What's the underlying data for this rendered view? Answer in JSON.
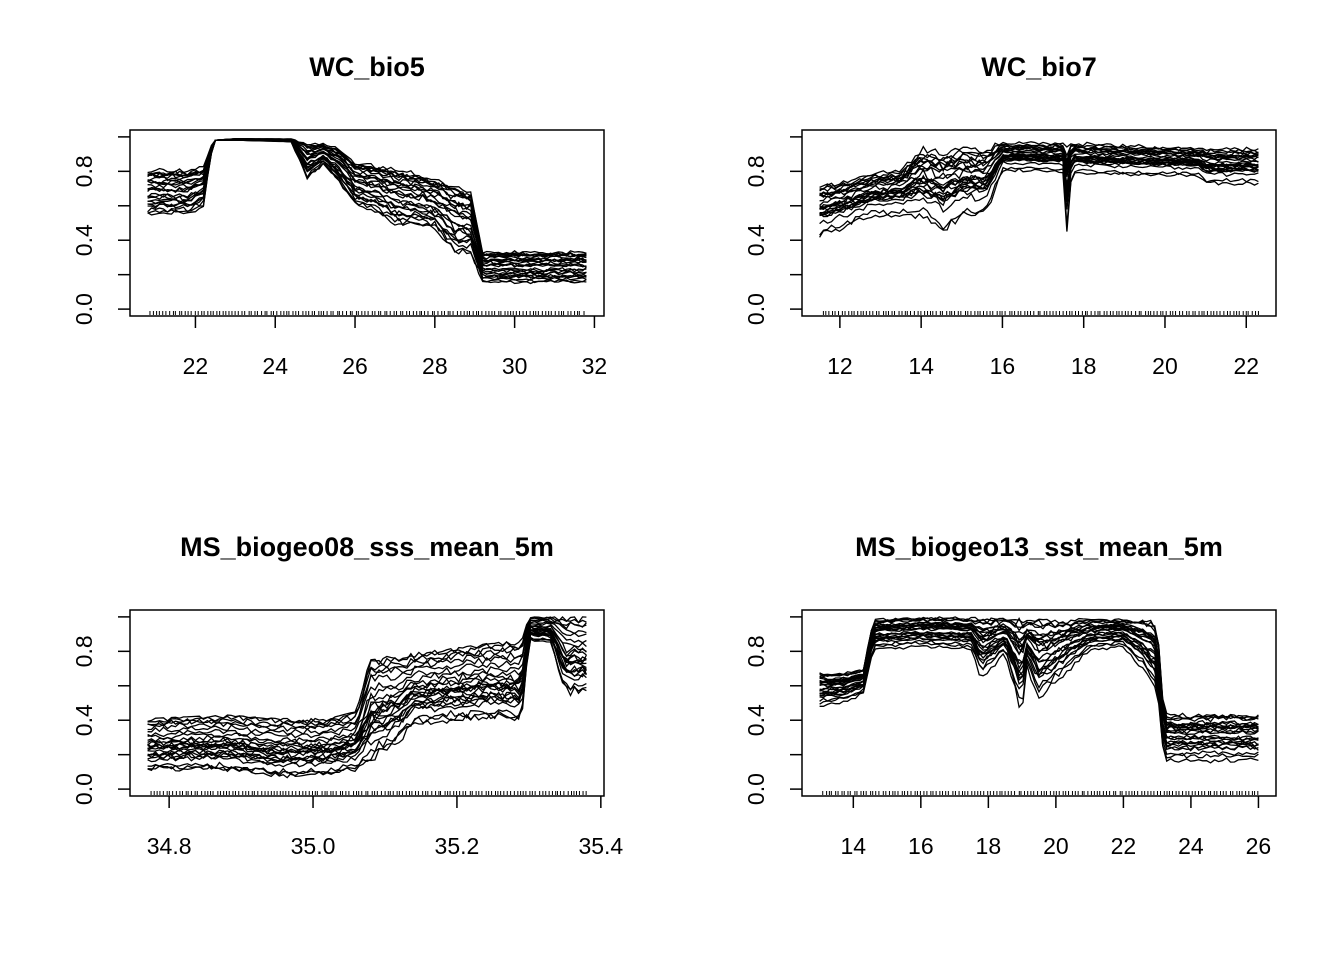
{
  "figure": {
    "background": "#ffffff",
    "line_color": "#000000"
  },
  "chart_data": [
    {
      "type": "line",
      "title": "WC_bio5",
      "xlabel": "",
      "ylabel": "",
      "xlim": [
        20.8,
        31.8
      ],
      "ylim": [
        0.0,
        1.0
      ],
      "xticks": [
        22,
        24,
        26,
        28,
        30,
        32
      ],
      "yticks": [
        0.0,
        0.4,
        0.8
      ],
      "ytick_labels": [
        "0.0",
        "0.4",
        "0.8"
      ],
      "grid": false,
      "legend": "none",
      "n_lines": 26,
      "rug": true,
      "series_envelope": {
        "x": [
          20.8,
          21.8,
          22.2,
          22.45,
          23.0,
          24.4,
          24.8,
          25.2,
          25.6,
          26.0,
          26.5,
          27.0,
          27.5,
          28.0,
          28.5,
          28.9,
          29.2,
          29.5,
          30.0,
          31.8
        ],
        "y_lower": [
          0.53,
          0.53,
          0.58,
          0.98,
          0.98,
          0.97,
          0.74,
          0.83,
          0.72,
          0.58,
          0.55,
          0.47,
          0.46,
          0.44,
          0.3,
          0.3,
          0.14,
          0.14,
          0.14,
          0.14
        ],
        "y_upper": [
          0.83,
          0.83,
          0.85,
          0.98,
          0.99,
          0.99,
          0.98,
          0.97,
          0.95,
          0.88,
          0.86,
          0.84,
          0.82,
          0.78,
          0.76,
          0.72,
          0.35,
          0.35,
          0.35,
          0.35
        ]
      }
    },
    {
      "type": "line",
      "title": "WC_bio7",
      "xlabel": "",
      "ylabel": "",
      "xlim": [
        11.5,
        22.3
      ],
      "ylim": [
        0.0,
        1.0
      ],
      "xticks": [
        12,
        14,
        16,
        18,
        20,
        22
      ],
      "yticks": [
        0.0,
        0.4,
        0.8
      ],
      "ytick_labels": [
        "0.0",
        "0.4",
        "0.8"
      ],
      "grid": false,
      "legend": "none",
      "n_lines": 26,
      "rug": true,
      "series_envelope": {
        "x": [
          11.5,
          12.2,
          12.8,
          13.5,
          14.0,
          14.5,
          15.0,
          15.6,
          16.0,
          17.5,
          17.6,
          17.7,
          18.5,
          19.5,
          20.8,
          21.0,
          22.3
        ],
        "y_lower": [
          0.41,
          0.47,
          0.53,
          0.53,
          0.52,
          0.43,
          0.52,
          0.53,
          0.8,
          0.79,
          0.39,
          0.78,
          0.78,
          0.77,
          0.77,
          0.72,
          0.72
        ],
        "y_upper": [
          0.77,
          0.79,
          0.83,
          0.85,
          0.99,
          0.99,
          0.99,
          0.99,
          0.99,
          0.99,
          0.99,
          0.99,
          0.98,
          0.97,
          0.96,
          0.96,
          0.96
        ]
      }
    },
    {
      "type": "line",
      "title": "MS_biogeo08_sss_mean_5m",
      "xlabel": "",
      "ylabel": "",
      "xlim": [
        34.77,
        35.38
      ],
      "ylim": [
        0.0,
        1.0
      ],
      "xticks": [
        34.8,
        35.0,
        35.2,
        35.4
      ],
      "xtick_labels": [
        "34.8",
        "35.0",
        "35.2",
        "35.4"
      ],
      "yticks": [
        0.0,
        0.4,
        0.8
      ],
      "ytick_labels": [
        "0.0",
        "0.4",
        "0.8"
      ],
      "grid": false,
      "legend": "none",
      "n_lines": 26,
      "rug": true,
      "series_envelope": {
        "x": [
          34.77,
          34.88,
          34.95,
          35.02,
          35.06,
          35.08,
          35.12,
          35.14,
          35.2,
          35.25,
          35.29,
          35.3,
          35.33,
          35.35,
          35.38
        ],
        "y_lower": [
          0.1,
          0.1,
          0.06,
          0.07,
          0.1,
          0.14,
          0.25,
          0.36,
          0.38,
          0.4,
          0.37,
          0.86,
          0.85,
          0.54,
          0.54
        ],
        "y_upper": [
          0.41,
          0.43,
          0.41,
          0.41,
          0.45,
          0.77,
          0.77,
          0.79,
          0.82,
          0.85,
          0.86,
          1.0,
          1.0,
          1.0,
          1.0
        ]
      }
    },
    {
      "type": "line",
      "title": "MS_biogeo13_sst_mean_5m",
      "xlabel": "",
      "ylabel": "",
      "xlim": [
        13.0,
        26.0
      ],
      "ylim": [
        0.0,
        1.0
      ],
      "xticks": [
        14,
        16,
        18,
        20,
        22,
        24,
        26
      ],
      "yticks": [
        0.0,
        0.4,
        0.8
      ],
      "ytick_labels": [
        "0.0",
        "0.4",
        "0.8"
      ],
      "grid": false,
      "legend": "none",
      "n_lines": 26,
      "rug": true,
      "series_envelope": {
        "x": [
          13.0,
          13.8,
          14.3,
          14.6,
          16.0,
          17.5,
          17.8,
          18.5,
          19.0,
          19.1,
          19.5,
          20.0,
          21.0,
          22.0,
          22.6,
          23.0,
          23.2,
          26.0
        ],
        "y_lower": [
          0.47,
          0.5,
          0.55,
          0.8,
          0.82,
          0.8,
          0.62,
          0.78,
          0.38,
          0.72,
          0.5,
          0.6,
          0.8,
          0.82,
          0.68,
          0.55,
          0.15,
          0.15
        ],
        "y_upper": [
          0.68,
          0.68,
          0.7,
          0.99,
          1.0,
          1.0,
          1.0,
          1.0,
          1.0,
          0.99,
          0.99,
          0.99,
          0.99,
          0.99,
          0.99,
          0.97,
          0.44,
          0.44
        ]
      }
    }
  ]
}
